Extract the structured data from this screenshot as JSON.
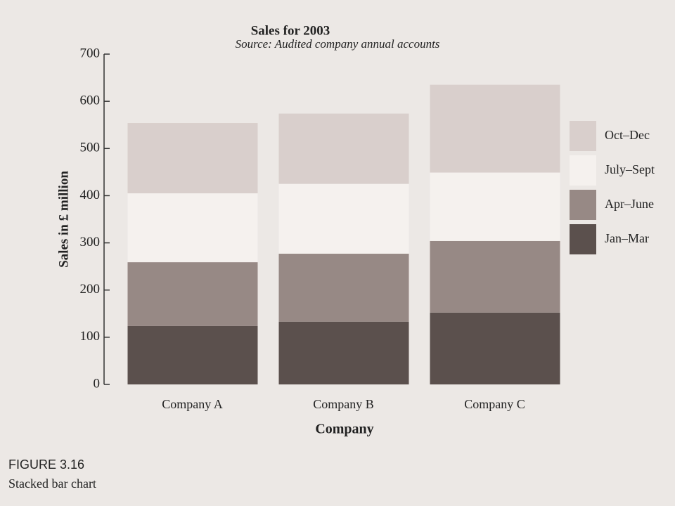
{
  "chart_data": {
    "type": "stacked_bar",
    "title": "Sales for 2003",
    "subtitle": "Source: Audited company annual accounts",
    "x_label": "Company",
    "y_label": "Sales in £ million",
    "categories": [
      "Company A",
      "Company B",
      "Company C"
    ],
    "series": [
      {
        "name": "Jan–Mar",
        "color": "#5b504d",
        "values": [
          124,
          133,
          152
        ]
      },
      {
        "name": "Apr–June",
        "color": "#978985",
        "values": [
          135,
          144,
          152
        ]
      },
      {
        "name": "July–Sept",
        "color": "#f5f1ee",
        "values": [
          146,
          148,
          145
        ]
      },
      {
        "name": "Oct–Dec",
        "color": "#d9cfcc",
        "values": [
          149,
          149,
          186
        ]
      }
    ],
    "ylim": [
      0,
      700
    ],
    "yticks": [
      0,
      100,
      200,
      300,
      400,
      500,
      600,
      700
    ],
    "legend": "right",
    "figure_label": "FIGURE 3.16",
    "figure_caption": "Stacked bar chart"
  }
}
